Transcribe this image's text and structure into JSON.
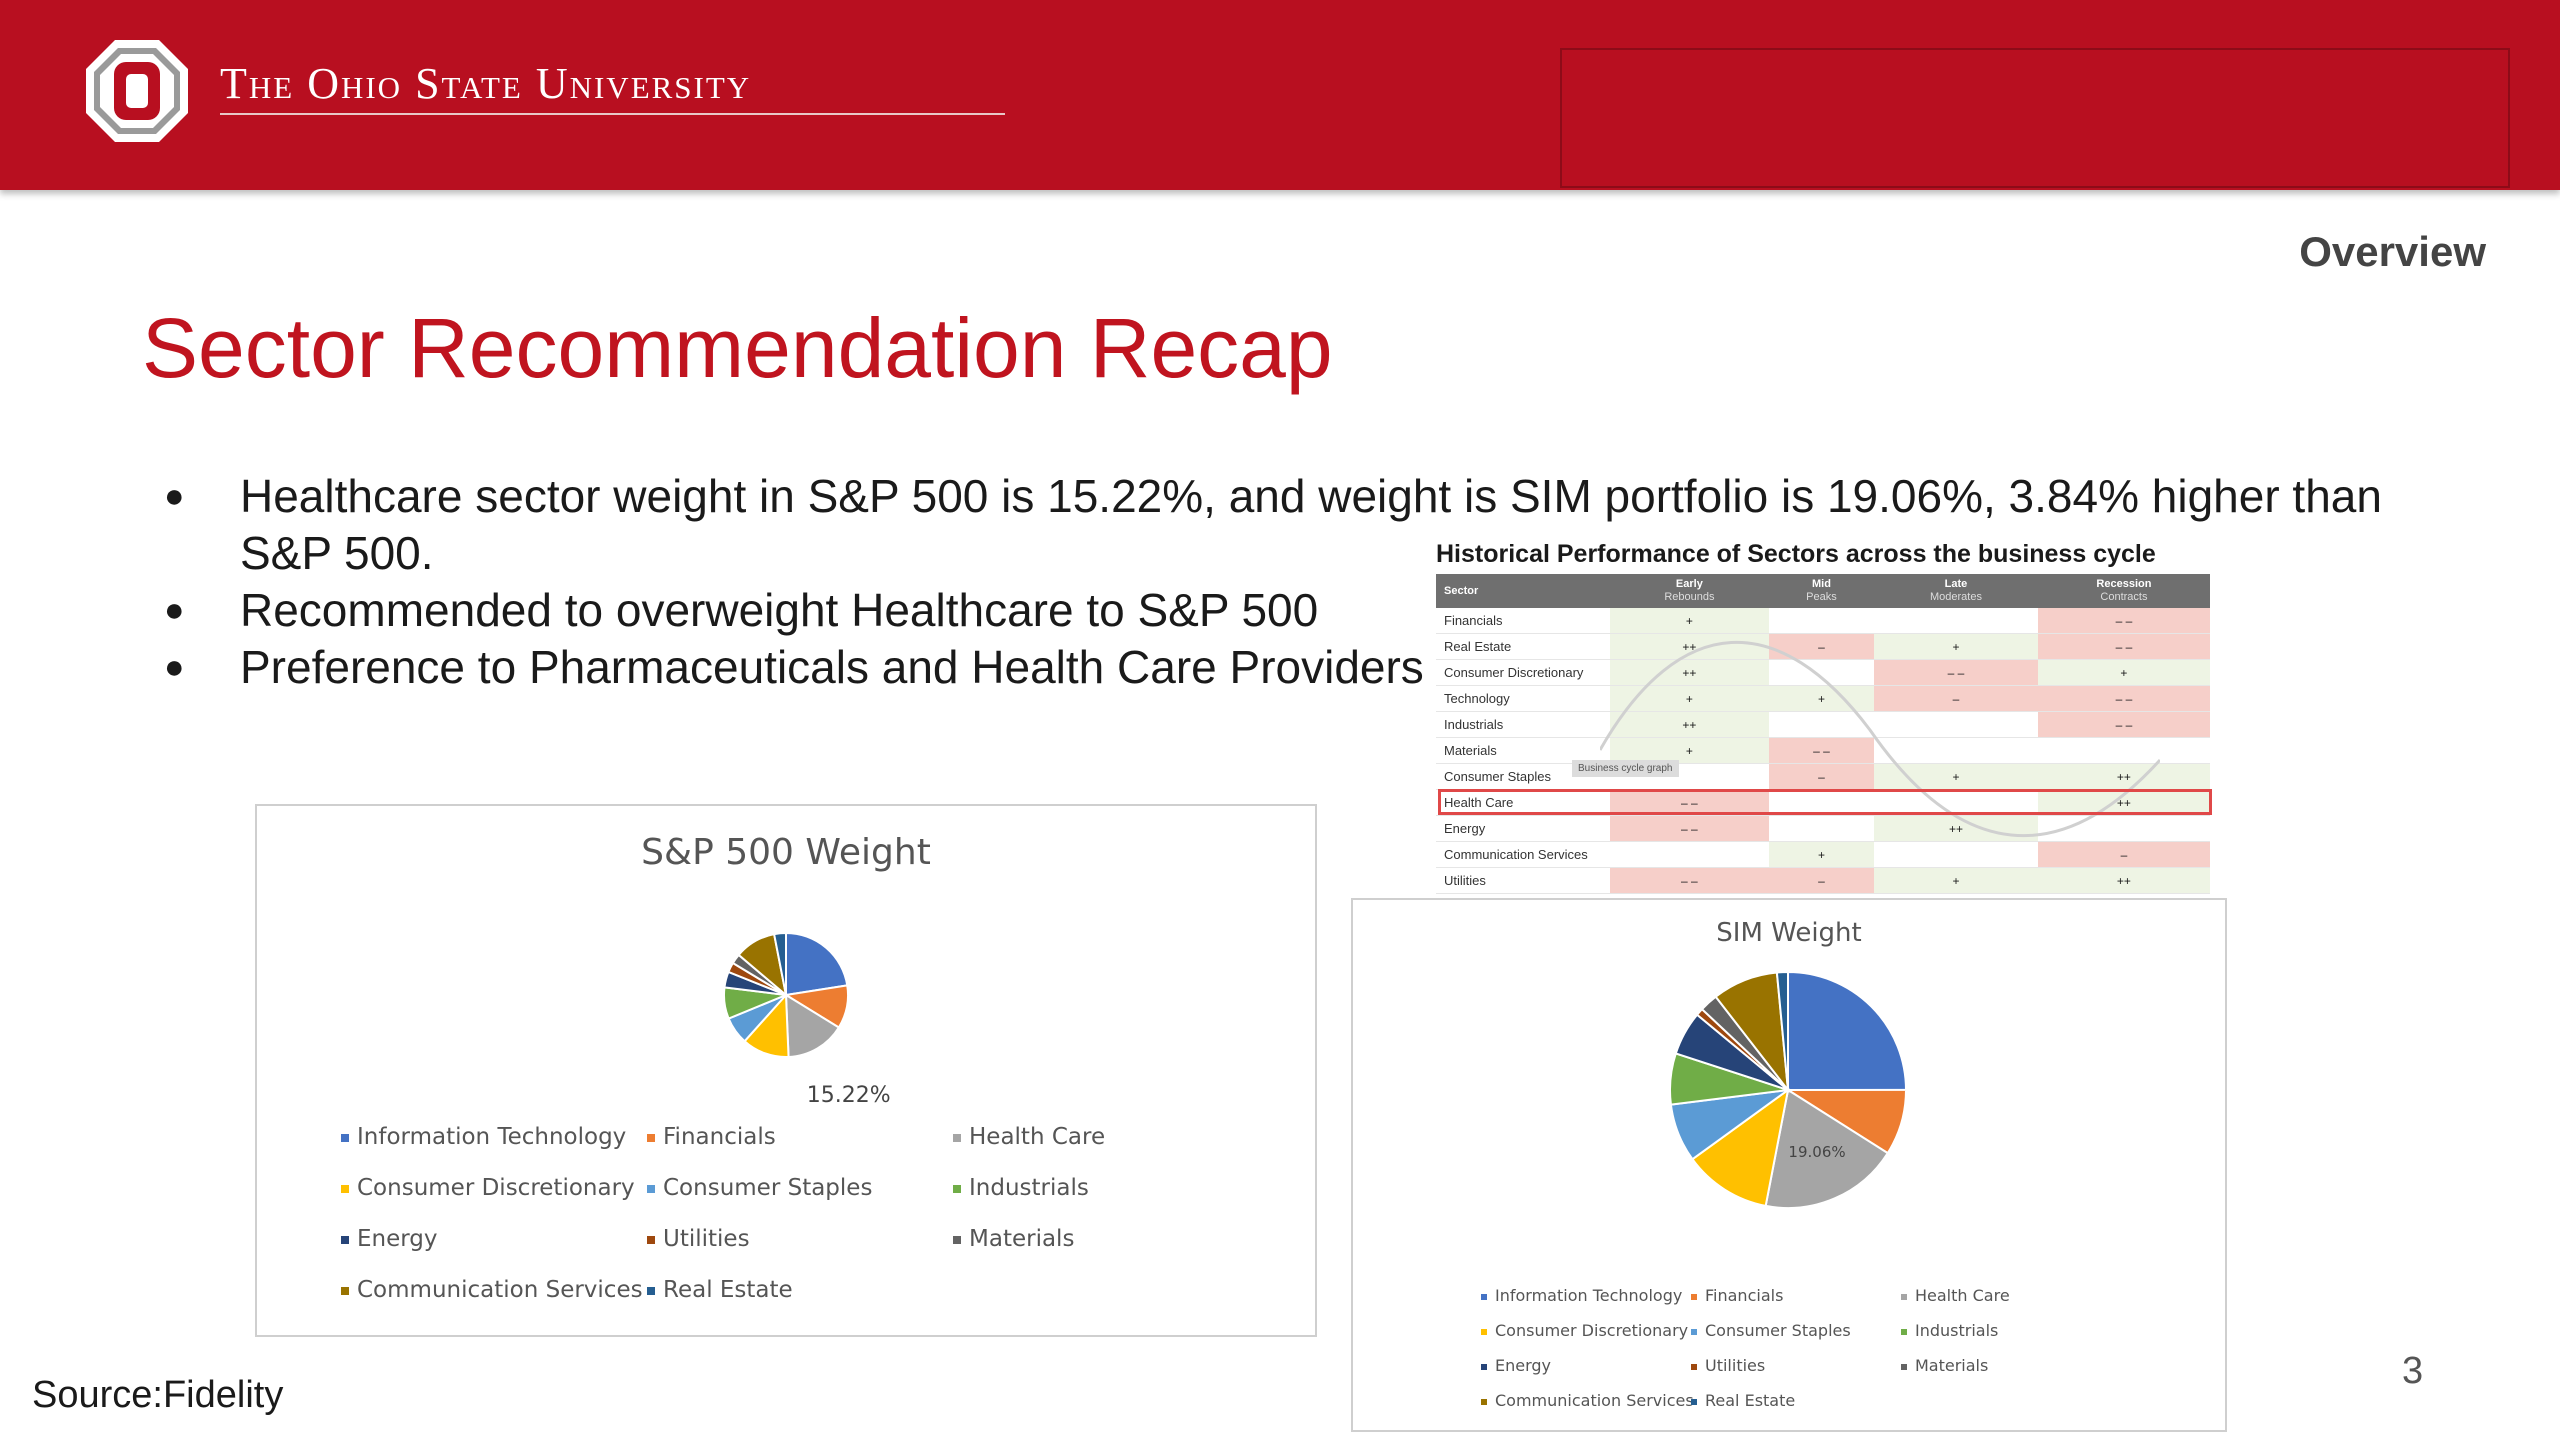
{
  "header": {
    "university": "The Ohio State University"
  },
  "section_label": "Overview",
  "title": "Sector Recommendation Recap",
  "bullets": [
    "Healthcare sector weight in S&P 500 is 15.22%, and weight is SIM portfolio is 19.06%, 3.84% higher than S&P 500.",
    "Recommended to overweight Healthcare to S&P 500",
    "Preference to Pharmaceuticals and Health Care Providers"
  ],
  "heatmap": {
    "title": "Historical Performance of Sectors across the business cycle",
    "columns": [
      "Sector",
      "Early",
      "Rebounds",
      "Mid",
      "Peaks",
      "Late",
      "Moderates",
      "Recession",
      "Contracts"
    ],
    "overlay_label": "Business cycle graph",
    "rows": [
      {
        "sector": "Financials",
        "early": "+",
        "mid": "",
        "late": "",
        "recession": "– –"
      },
      {
        "sector": "Real Estate",
        "early": "++",
        "mid": "–",
        "late": "+",
        "recession": "– –"
      },
      {
        "sector": "Consumer Discretionary",
        "early": "++",
        "mid": "",
        "late": "– –",
        "recession": "+"
      },
      {
        "sector": "Technology",
        "early": "+",
        "mid": "+",
        "late": "–",
        "recession": "– –"
      },
      {
        "sector": "Industrials",
        "early": "++",
        "mid": "",
        "late": "",
        "recession": "– –"
      },
      {
        "sector": "Materials",
        "early": "+",
        "mid": "– –",
        "late": "",
        "recession": ""
      },
      {
        "sector": "Consumer Staples",
        "early": "",
        "mid": "–",
        "late": "+",
        "recession": "++"
      },
      {
        "sector": "Health Care",
        "early": "– –",
        "mid": "",
        "late": "",
        "recession": "++"
      },
      {
        "sector": "Energy",
        "early": "– –",
        "mid": "",
        "late": "++",
        "recession": ""
      },
      {
        "sector": "Communication Services",
        "early": "",
        "mid": "+",
        "late": "",
        "recession": "–"
      },
      {
        "sector": "Utilities",
        "early": "– –",
        "mid": "–",
        "late": "+",
        "recession": "++"
      }
    ],
    "cell_colors": {
      "positive": "#eef4e4",
      "negative": "#f6cfc9"
    }
  },
  "legend_labels": [
    "Information Technology",
    "Financials",
    "Health Care",
    "Consumer Discretionary",
    "Consumer Staples",
    "Industrials",
    "Energy",
    "Utilities",
    "Materials",
    "Communication Services",
    "Real Estate"
  ],
  "colors": {
    "Information Technology": "#4472c4",
    "Financials": "#ed7d31",
    "Health Care": "#a5a5a5",
    "Consumer Discretionary": "#ffc000",
    "Consumer Staples": "#5b9bd5",
    "Industrials": "#70ad47",
    "Energy": "#264478",
    "Utilities": "#9e480e",
    "Materials": "#636363",
    "Communication Services": "#997300",
    "Real Estate": "#255e91"
  },
  "chart_data": [
    {
      "type": "pie",
      "title": "S&P 500 Weight",
      "categories": [
        "Information Technology",
        "Financials",
        "Health Care",
        "Consumer Discretionary",
        "Consumer Staples",
        "Industrials",
        "Energy",
        "Utilities",
        "Materials",
        "Communication Services",
        "Real Estate"
      ],
      "values": [
        22.0,
        11.0,
        15.22,
        12.0,
        7.0,
        8.0,
        4.0,
        2.5,
        2.5,
        10.5,
        3.0
      ],
      "data_labels": {
        "Health Care": "15.22%"
      },
      "legend": "bottom"
    },
    {
      "type": "pie",
      "title": "SIM Weight",
      "categories": [
        "Information Technology",
        "Financials",
        "Health Care",
        "Consumer Discretionary",
        "Consumer Staples",
        "Industrials",
        "Energy",
        "Utilities",
        "Materials",
        "Communication Services",
        "Real Estate"
      ],
      "values": [
        25.0,
        9.0,
        19.06,
        12.0,
        8.0,
        7.0,
        6.0,
        1.0,
        2.5,
        9.0,
        1.5
      ],
      "data_labels": {
        "Health Care": "19.06%"
      },
      "legend": "bottom"
    }
  ],
  "source": "Source:Fidelity",
  "page_number": "3"
}
